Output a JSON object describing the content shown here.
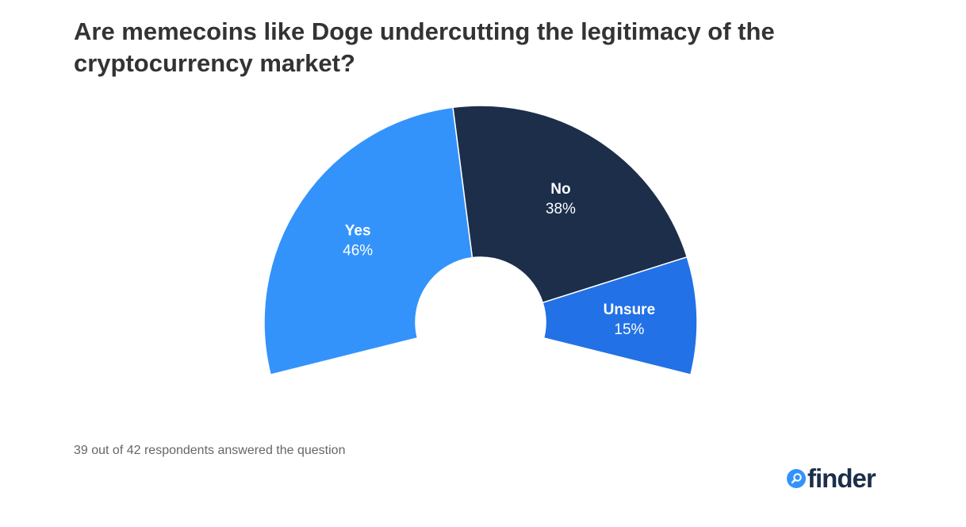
{
  "chart_data": {
    "type": "pie",
    "variant": "semi-donut",
    "title": "Are memecoins like Doge undercutting the legitimacy of the cryptocurrency market?",
    "slices": [
      {
        "label": "Yes",
        "value": 46,
        "display": "46%",
        "color": "#3393fb"
      },
      {
        "label": "No",
        "value": 38,
        "display": "38%",
        "color": "#1c2e4a"
      },
      {
        "label": "Unsure",
        "value": 15,
        "display": "15%",
        "color": "#2271e6"
      }
    ],
    "note": "39 out of 42 respondents answered the question"
  },
  "brand": {
    "name": "finder",
    "color": "#1c2e4a",
    "icon": "magnifier-icon"
  }
}
